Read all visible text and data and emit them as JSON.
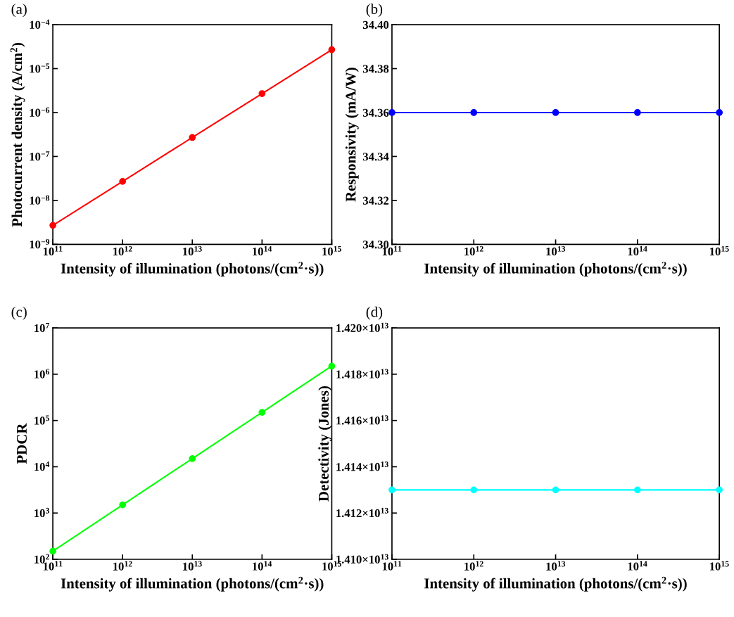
{
  "chart_data": [
    {
      "type": "line",
      "annotations": [
        "(a)"
      ],
      "xlabel": "Intensity of illumination (photons/(cm$^{2}$·s))",
      "ylabel": "Photocurrent density (A/cm$^{2}$)",
      "log": "xy",
      "marker": "circle",
      "line_style": "solid",
      "grid": false,
      "legend": false,
      "x": [
        100000000000.0,
        1000000000000.0,
        10000000000000.0,
        100000000000000.0,
        1000000000000000.0
      ],
      "series": [
        {
          "color": "#ff0000",
          "values": [
            2.7e-09,
            2.7e-08,
            2.7e-07,
            2.7e-06,
            2.7e-05
          ]
        }
      ],
      "xlim": [
        100000000000.0,
        1000000000000000.0
      ],
      "xticks": [
        {
          "value": 100000000000.0,
          "label": "10$^{11}$"
        },
        {
          "value": 1000000000000.0,
          "label": "10$^{12}$"
        },
        {
          "value": 10000000000000.0,
          "label": "10$^{13}$"
        },
        {
          "value": 100000000000000.0,
          "label": "10$^{14}$"
        },
        {
          "value": 1000000000000000.0,
          "label": "10$^{15}$"
        }
      ],
      "ylim": [
        1e-09,
        0.0001
      ],
      "yticks": [
        {
          "value": 1e-09,
          "label": "10$^{−9}$"
        },
        {
          "value": 1e-08,
          "label": "10$^{−8}$"
        },
        {
          "value": 1e-07,
          "label": "10$^{−7}$"
        },
        {
          "value": 1e-06,
          "label": "10$^{−6}$"
        },
        {
          "value": 1e-05,
          "label": "10$^{−5}$"
        },
        {
          "value": 0.0001,
          "label": "10$^{−4}$"
        }
      ]
    },
    {
      "type": "line",
      "annotations": [
        "(b)"
      ],
      "xlabel": "Intensity of illumination (photons/(cm$^{2}$·s))",
      "ylabel": "Responsivity (mA/W)",
      "log": "x",
      "marker": "circle",
      "line_style": "solid",
      "grid": false,
      "legend": false,
      "x": [
        100000000000.0,
        1000000000000.0,
        10000000000000.0,
        100000000000000.0,
        1000000000000000.0
      ],
      "series": [
        {
          "color": "#0000ff",
          "values": [
            34.36,
            34.36,
            34.36,
            34.36,
            34.36
          ]
        }
      ],
      "xlim": [
        100000000000.0,
        1000000000000000.0
      ],
      "xticks": [
        {
          "value": 100000000000.0,
          "label": "10$^{11}$"
        },
        {
          "value": 1000000000000.0,
          "label": "10$^{12}$"
        },
        {
          "value": 10000000000000.0,
          "label": "10$^{13}$"
        },
        {
          "value": 100000000000000.0,
          "label": "10$^{14}$"
        },
        {
          "value": 1000000000000000.0,
          "label": "10$^{15}$"
        }
      ],
      "ylim": [
        34.3,
        34.4
      ],
      "yticks": [
        {
          "value": 34.3,
          "label": "34.30"
        },
        {
          "value": 34.32,
          "label": "34.32"
        },
        {
          "value": 34.34,
          "label": "34.34"
        },
        {
          "value": 34.36,
          "label": "34.36"
        },
        {
          "value": 34.38,
          "label": "34.38"
        },
        {
          "value": 34.4,
          "label": "34.40"
        }
      ]
    },
    {
      "type": "line",
      "annotations": [
        "(c)"
      ],
      "xlabel": "Intensity of illumination (photons/(cm$^{2}$·s))",
      "ylabel": "PDCR",
      "log": "xy",
      "marker": "circle",
      "line_style": "solid",
      "grid": false,
      "legend": false,
      "x": [
        100000000000.0,
        1000000000000.0,
        10000000000000.0,
        100000000000000.0,
        1000000000000000.0
      ],
      "series": [
        {
          "color": "#00ff00",
          "values": [
            150,
            1500,
            15000,
            150000,
            1500000
          ]
        }
      ],
      "xlim": [
        100000000000.0,
        1000000000000000.0
      ],
      "xticks": [
        {
          "value": 100000000000.0,
          "label": "10$^{11}$"
        },
        {
          "value": 1000000000000.0,
          "label": "10$^{12}$"
        },
        {
          "value": 10000000000000.0,
          "label": "10$^{13}$"
        },
        {
          "value": 100000000000000.0,
          "label": "10$^{14}$"
        },
        {
          "value": 1000000000000000.0,
          "label": "10$^{15}$"
        }
      ],
      "ylim": [
        100,
        10000000.0
      ],
      "yticks": [
        {
          "value": 100,
          "label": "10$^{2}$"
        },
        {
          "value": 1000,
          "label": "10$^{3}$"
        },
        {
          "value": 10000,
          "label": "10$^{4}$"
        },
        {
          "value": 100000,
          "label": "10$^{5}$"
        },
        {
          "value": 1000000,
          "label": "10$^{6}$"
        },
        {
          "value": 10000000,
          "label": "10$^{7}$"
        }
      ]
    },
    {
      "type": "line",
      "annotations": [
        "(d)"
      ],
      "xlabel": "Intensity of illumination (photons/(cm$^{2}$·s))",
      "ylabel": "Detectivity (Jones)",
      "log": "x",
      "marker": "circle",
      "line_style": "solid",
      "grid": false,
      "legend": false,
      "x": [
        100000000000.0,
        1000000000000.0,
        10000000000000.0,
        100000000000000.0,
        1000000000000000.0
      ],
      "series": [
        {
          "color": "#00ffff",
          "values": [
            14130000000000.0,
            14130000000000.0,
            14130000000000.0,
            14130000000000.0,
            14130000000000.0
          ]
        }
      ],
      "xlim": [
        100000000000.0,
        1000000000000000.0
      ],
      "xticks": [
        {
          "value": 100000000000.0,
          "label": "10$^{11}$"
        },
        {
          "value": 1000000000000.0,
          "label": "10$^{12}$"
        },
        {
          "value": 10000000000000.0,
          "label": "10$^{13}$"
        },
        {
          "value": 100000000000000.0,
          "label": "10$^{14}$"
        },
        {
          "value": 1000000000000000.0,
          "label": "10$^{15}$"
        }
      ],
      "ylim": [
        14100000000000.0,
        14200000000000.0
      ],
      "yticks": [
        {
          "value": 14100000000000.0,
          "label": "1.410×10$^{13}$"
        },
        {
          "value": 14120000000000.0,
          "label": "1.412×10$^{13}$"
        },
        {
          "value": 14140000000000.0,
          "label": "1.414×10$^{13}$"
        },
        {
          "value": 14160000000000.0,
          "label": "1.416×10$^{13}$"
        },
        {
          "value": 14180000000000.0,
          "label": "1.418×10$^{13}$"
        },
        {
          "value": 14200000000000.0,
          "label": "1.420×10$^{13}$"
        }
      ]
    }
  ]
}
